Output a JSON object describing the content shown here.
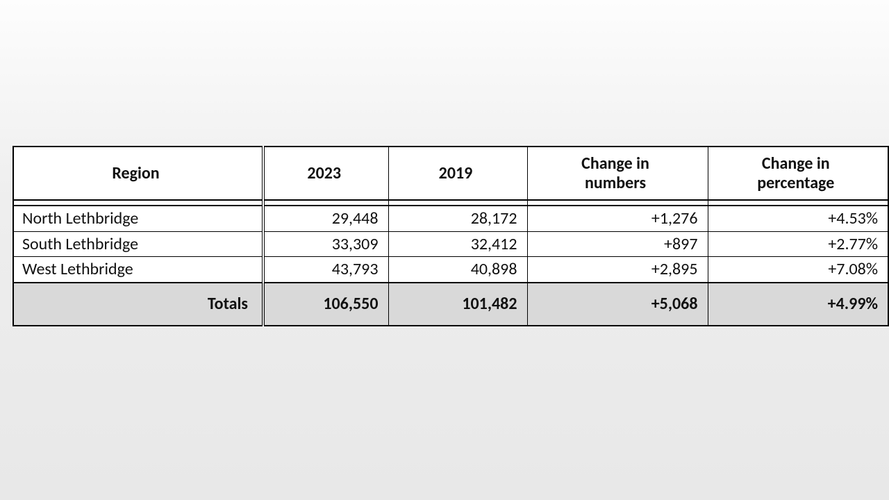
{
  "table": {
    "type": "table",
    "background_color": "#ffffff",
    "totals_background": "#d9d9d9",
    "border_color": "#000000",
    "font_family": "Calibri",
    "header_fontsize_pt": 18,
    "body_fontsize_pt": 18,
    "columns": [
      {
        "key": "region",
        "label": "Region",
        "align_header": "center",
        "align_body": "left"
      },
      {
        "key": "y2023",
        "label": "2023",
        "align_header": "center",
        "align_body": "right"
      },
      {
        "key": "y2019",
        "label": "2019",
        "align_header": "center",
        "align_body": "right"
      },
      {
        "key": "change_num",
        "label": "Change in numbers",
        "align_header": "center",
        "align_body": "right"
      },
      {
        "key": "change_pct",
        "label": "Change in percentage",
        "align_header": "center",
        "align_body": "right"
      }
    ],
    "rows": [
      {
        "region": "North Lethbridge",
        "y2023": "29,448",
        "y2019": "28,172",
        "change_num": "+1,276",
        "change_pct": "+4.53%"
      },
      {
        "region": "South Lethbridge",
        "y2023": "33,309",
        "y2019": "32,412",
        "change_num": "+897",
        "change_pct": "+2.77%"
      },
      {
        "region": "West Lethbridge",
        "y2023": "43,793",
        "y2019": "40,898",
        "change_num": "+2,895",
        "change_pct": "+7.08%"
      }
    ],
    "totals": {
      "label": "Totals",
      "y2023": "106,550",
      "y2019": "101,482",
      "change_num": "+5,068",
      "change_pct": "+4.99%"
    }
  }
}
